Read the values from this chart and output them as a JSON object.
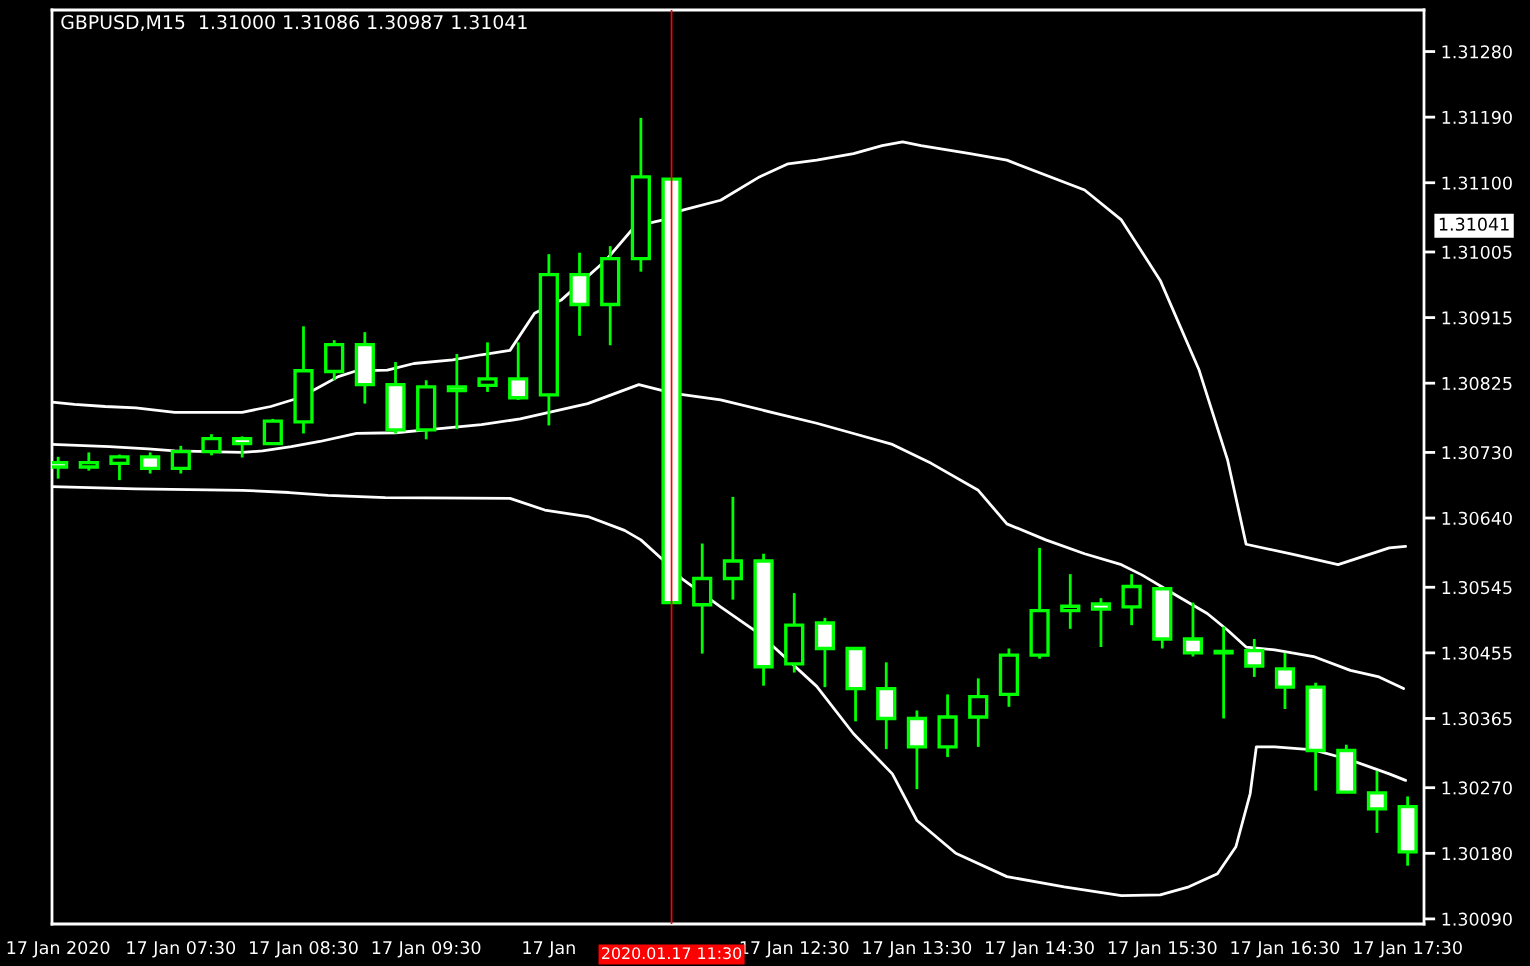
{
  "chart_data": {
    "type": "candlestick",
    "title": "GBPUSD,M15  1.31000 1.31086 1.30987 1.31041",
    "color": "#00ff00",
    "x": [
      "2020-01-17T06:30",
      "2020-01-17T06:45",
      "2020-01-17T07:00",
      "2020-01-17T07:15",
      "2020-01-17T07:30",
      "2020-01-17T07:45",
      "2020-01-17T08:00",
      "2020-01-17T08:15",
      "2020-01-17T08:30",
      "2020-01-17T08:45",
      "2020-01-17T09:00",
      "2020-01-17T09:15",
      "2020-01-17T09:30",
      "2020-01-17T09:45",
      "2020-01-17T10:00",
      "2020-01-17T10:15",
      "2020-01-17T10:30",
      "2020-01-17T10:45",
      "2020-01-17T11:00",
      "2020-01-17T11:15",
      "2020-01-17T11:30",
      "2020-01-17T11:45",
      "2020-01-17T12:00",
      "2020-01-17T12:15",
      "2020-01-17T12:30",
      "2020-01-17T12:45",
      "2020-01-17T13:00",
      "2020-01-17T13:15",
      "2020-01-17T13:30",
      "2020-01-17T13:45",
      "2020-01-17T14:00",
      "2020-01-17T14:15",
      "2020-01-17T14:30",
      "2020-01-17T14:45",
      "2020-01-17T15:00",
      "2020-01-17T15:15",
      "2020-01-17T15:30",
      "2020-01-17T15:45",
      "2020-01-17T16:00",
      "2020-01-17T16:15",
      "2020-01-17T16:30",
      "2020-01-17T16:45",
      "2020-01-17T17:00",
      "2020-01-17T17:15",
      "2020-01-17T17:30"
    ],
    "ohlc": [
      [
        1.30716,
        1.30724,
        1.30694,
        1.3071
      ],
      [
        1.3071,
        1.3073,
        1.30705,
        1.30716
      ],
      [
        1.30715,
        1.30727,
        1.30692,
        1.30724
      ],
      [
        1.30724,
        1.3073,
        1.30701,
        1.30708
      ],
      [
        1.30708,
        1.30739,
        1.30701,
        1.30731
      ],
      [
        1.30731,
        1.30755,
        1.30726,
        1.30749
      ],
      [
        1.30749,
        1.30752,
        1.30723,
        1.30742
      ],
      [
        1.30742,
        1.30776,
        1.30742,
        1.30773
      ],
      [
        1.30772,
        1.30903,
        1.30756,
        1.30842
      ],
      [
        1.30841,
        1.30884,
        1.30829,
        1.30878
      ],
      [
        1.30878,
        1.30895,
        1.30797,
        1.30823
      ],
      [
        1.30823,
        1.30854,
        1.30756,
        1.30761
      ],
      [
        1.30761,
        1.30829,
        1.30748,
        1.3082
      ],
      [
        1.3082,
        1.30865,
        1.30762,
        1.30815
      ],
      [
        1.30822,
        1.30881,
        1.30813,
        1.30831
      ],
      [
        1.30831,
        1.30881,
        1.30802,
        1.30805
      ],
      [
        1.30809,
        1.31002,
        1.30767,
        1.30974
      ],
      [
        1.30974,
        1.31004,
        1.3089,
        1.30933
      ],
      [
        1.30933,
        1.31013,
        1.30877,
        1.30996
      ],
      [
        1.30996,
        1.31189,
        1.30978,
        1.31108
      ],
      [
        1.31105,
        1.31105,
        1.30524,
        1.30524
      ],
      [
        1.30521,
        1.30605,
        1.30454,
        1.30557
      ],
      [
        1.30557,
        1.30669,
        1.30528,
        1.30581
      ],
      [
        1.30581,
        1.30591,
        1.3041,
        1.30436
      ],
      [
        1.3044,
        1.30537,
        1.30428,
        1.30493
      ],
      [
        1.30496,
        1.30503,
        1.30408,
        1.30461
      ],
      [
        1.30461,
        1.30461,
        1.30361,
        1.30406
      ],
      [
        1.30406,
        1.30442,
        1.30323,
        1.30365
      ],
      [
        1.30365,
        1.30376,
        1.30268,
        1.30326
      ],
      [
        1.30326,
        1.30398,
        1.30312,
        1.30367
      ],
      [
        1.30367,
        1.3042,
        1.30326,
        1.30395
      ],
      [
        1.30398,
        1.30461,
        1.30381,
        1.30452
      ],
      [
        1.30452,
        1.30599,
        1.30447,
        1.30513
      ],
      [
        1.30513,
        1.30563,
        1.30488,
        1.30519
      ],
      [
        1.30522,
        1.3053,
        1.30463,
        1.30515
      ],
      [
        1.30518,
        1.30563,
        1.30493,
        1.30546
      ],
      [
        1.30543,
        1.30543,
        1.30461,
        1.30474
      ],
      [
        1.30474,
        1.30524,
        1.3045,
        1.30455
      ],
      [
        1.30457,
        1.30491,
        1.30365,
        1.30455
      ],
      [
        1.30458,
        1.30474,
        1.30422,
        1.30437
      ],
      [
        1.30433,
        1.30455,
        1.30378,
        1.30408
      ],
      [
        1.30408,
        1.30414,
        1.30266,
        1.30321
      ],
      [
        1.30321,
        1.30329,
        1.30264,
        1.30264
      ],
      [
        1.30263,
        1.30293,
        1.30208,
        1.30241
      ],
      [
        1.30244,
        1.30258,
        1.30163,
        1.30182
      ]
    ],
    "series": [
      {
        "type": "line",
        "color": "#ffffff",
        "x": [
          "2020-01-17T06:27",
          "2020-01-17T06:38",
          "2020-01-17T06:53",
          "2020-01-17T07:08",
          "2020-01-17T07:27",
          "2020-01-17T08:00",
          "2020-01-17T08:14",
          "2020-01-17T08:28",
          "2020-01-17T08:38",
          "2020-01-17T08:47",
          "2020-01-17T08:56",
          "2020-01-17T09:11",
          "2020-01-17T09:24",
          "2020-01-17T09:43",
          "2020-01-17T09:57",
          "2020-01-17T10:11",
          "2020-01-17T10:23",
          "2020-01-17T10:36",
          "2020-01-17T10:58",
          "2020-01-17T11:12",
          "2020-01-17T11:26",
          "2020-01-17T11:35",
          "2020-01-17T11:54",
          "2020-01-17T12:13",
          "2020-01-17T12:27",
          "2020-01-17T12:41",
          "2020-01-17T12:59",
          "2020-01-17T13:13",
          "2020-01-17T13:23",
          "2020-01-17T13:32",
          "2020-01-17T13:56",
          "2020-01-17T14:14",
          "2020-01-17T14:52",
          "2020-01-17T15:10",
          "2020-01-17T15:29",
          "2020-01-17T15:48",
          "2020-01-17T16:02",
          "2020-01-17T16:11",
          "2020-01-17T16:34",
          "2020-01-17T16:56",
          "2020-01-17T17:21",
          "2020-01-17T17:29"
        ],
        "values": [
          1.30799,
          1.30796,
          1.30793,
          1.30791,
          1.30785,
          1.30785,
          1.30793,
          1.30805,
          1.3082,
          1.30834,
          1.30842,
          1.30843,
          1.30852,
          1.30857,
          1.30864,
          1.3087,
          1.30921,
          1.30939,
          1.30994,
          1.3104,
          1.31049,
          1.31062,
          1.31076,
          1.31108,
          1.31126,
          1.31131,
          1.3114,
          1.31151,
          1.31156,
          1.31151,
          1.3114,
          1.31131,
          1.3109,
          1.31049,
          1.30966,
          1.30843,
          1.30719,
          1.30604,
          1.3059,
          1.30576,
          1.30599,
          1.30601
        ]
      },
      {
        "type": "line",
        "color": "#ffffff",
        "x": [
          "2020-01-17T06:27",
          "2020-01-17T06:55",
          "2020-01-17T07:14",
          "2020-01-17T07:27",
          "2020-01-17T08:00",
          "2020-01-17T08:10",
          "2020-01-17T08:24",
          "2020-01-17T08:38",
          "2020-01-17T08:56",
          "2020-01-17T09:15",
          "2020-01-17T09:34",
          "2020-01-17T09:57",
          "2020-01-17T10:16",
          "2020-01-17T10:49",
          "2020-01-17T11:14",
          "2020-01-17T11:31",
          "2020-01-17T11:54",
          "2020-01-17T12:22",
          "2020-01-17T12:41",
          "2020-01-17T12:59",
          "2020-01-17T13:18",
          "2020-01-17T13:37",
          "2020-01-17T14:00",
          "2020-01-17T14:14",
          "2020-01-17T14:33",
          "2020-01-17T14:52",
          "2020-01-17T15:10",
          "2020-01-17T15:20",
          "2020-01-17T15:38",
          "2020-01-17T15:52",
          "2020-01-17T16:02",
          "2020-01-17T16:11",
          "2020-01-17T16:25",
          "2020-01-17T16:44",
          "2020-01-17T17:02",
          "2020-01-17T17:16",
          "2020-01-17T17:28"
        ],
        "values": [
          1.30741,
          1.30738,
          1.30735,
          1.30732,
          1.3073,
          1.30732,
          1.30738,
          1.30745,
          1.30756,
          1.30757,
          1.30762,
          1.30768,
          1.30776,
          1.30797,
          1.30823,
          1.30811,
          1.30802,
          1.30783,
          1.3077,
          1.30756,
          1.30741,
          1.30715,
          1.30678,
          1.30632,
          1.3061,
          1.30591,
          1.30576,
          1.30562,
          1.30532,
          1.30509,
          1.30486,
          1.30463,
          1.30459,
          1.3045,
          1.30431,
          1.30422,
          1.30406
        ]
      },
      {
        "type": "line",
        "color": "#ffffff",
        "x": [
          "2020-01-17T06:27",
          "2020-01-17T07:08",
          "2020-01-17T08:00",
          "2020-01-17T08:23",
          "2020-01-17T08:42",
          "2020-01-17T09:10",
          "2020-01-17T10:11",
          "2020-01-17T10:28",
          "2020-01-17T10:49",
          "2020-01-17T11:07",
          "2020-01-17T11:15",
          "2020-01-17T11:26",
          "2020-01-17T11:35",
          "2020-01-17T11:54",
          "2020-01-17T12:13",
          "2020-01-17T12:41",
          "2020-01-17T12:59",
          "2020-01-17T13:18",
          "2020-01-17T13:30",
          "2020-01-17T13:49",
          "2020-01-17T14:14",
          "2020-01-17T14:42",
          "2020-01-17T15:10",
          "2020-01-17T15:29",
          "2020-01-17T15:43",
          "2020-01-17T15:57",
          "2020-01-17T16:06",
          "2020-01-17T16:13",
          "2020-01-17T16:16",
          "2020-01-17T16:25",
          "2020-01-17T16:44",
          "2020-01-17T17:02",
          "2020-01-17T17:21",
          "2020-01-17T17:29"
        ],
        "values": [
          1.30683,
          1.3068,
          1.30678,
          1.30675,
          1.30671,
          1.30668,
          1.30667,
          1.30651,
          1.30642,
          1.30623,
          1.3061,
          1.30582,
          1.30557,
          1.30518,
          1.30481,
          1.30409,
          1.30344,
          1.30289,
          1.30225,
          1.3018,
          1.30148,
          1.30134,
          1.30122,
          1.30123,
          1.30134,
          1.30152,
          1.30189,
          1.30262,
          1.30326,
          1.30326,
          1.30322,
          1.30308,
          1.30289,
          1.3028
        ]
      }
    ],
    "xlim": [
      "2020-01-17T06:27",
      "2020-01-17T17:38"
    ],
    "ylim": [
      1.30083,
      1.31337
    ],
    "xticks": [
      {
        "value": "2020-01-17T06:30",
        "label": "17 Jan 2020"
      },
      {
        "value": "2020-01-17T07:30",
        "label": "17 Jan 07:30"
      },
      {
        "value": "2020-01-17T08:30",
        "label": "17 Jan 08:30"
      },
      {
        "value": "2020-01-17T09:30",
        "label": "17 Jan 09:30"
      },
      {
        "value": "2020-01-17T10:30",
        "label": "17 Jan"
      },
      {
        "value": "2020-01-17T11:30",
        "label": null
      },
      {
        "value": "2020-01-17T12:30",
        "label": "17 Jan 12:30"
      },
      {
        "value": "2020-01-17T13:30",
        "label": "17 Jan 13:30"
      },
      {
        "value": "2020-01-17T14:30",
        "label": "17 Jan 14:30"
      },
      {
        "value": "2020-01-17T15:30",
        "label": "17 Jan 15:30"
      },
      {
        "value": "2020-01-17T16:30",
        "label": "17 Jan 16:30"
      },
      {
        "value": "2020-01-17T17:30",
        "label": "17 Jan 17:30"
      }
    ],
    "yticks": [
      {
        "value": 1.3128,
        "label": "1.31280"
      },
      {
        "value": 1.3119,
        "label": "1.31190"
      },
      {
        "value": 1.311,
        "label": "1.31100"
      },
      1.31005,
      1.30915,
      1.30825,
      {
        "value": 1.3073,
        "label": "1.30730"
      },
      {
        "value": 1.3064,
        "label": "1.30640"
      },
      1.30545,
      1.30455,
      1.30365,
      {
        "value": 1.3027,
        "label": "1.30270"
      },
      {
        "value": 1.3018,
        "label": "1.30180"
      },
      {
        "value": 1.3009,
        "label": "1.30090"
      }
    ],
    "ref_lines": [
      {
        "axis": "x",
        "value": "2020-01-17T11:30",
        "color": "#ff0000"
      }
    ],
    "annotations": [
      "2020.01.17 11:30",
      "1.31041"
    ],
    "grid": false,
    "legend": false
  }
}
